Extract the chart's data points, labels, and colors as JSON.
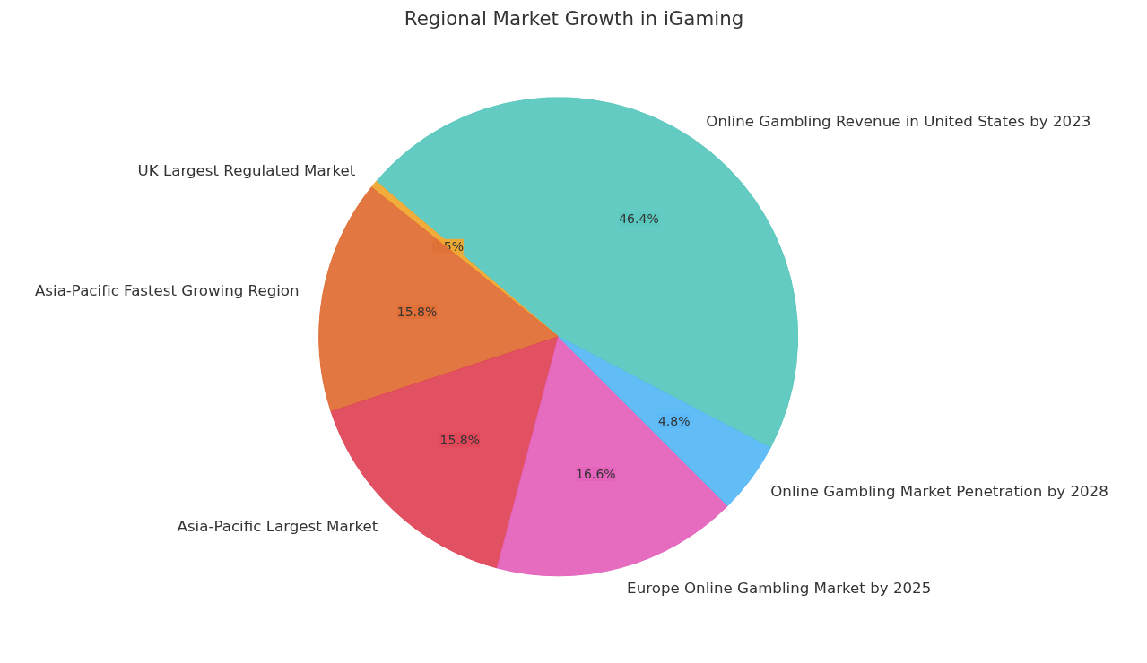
{
  "chart_data": {
    "type": "pie",
    "title": "Regional Market Growth in iGaming",
    "categories": [
      "Online Gambling Revenue in United States by 2023",
      "UK Largest Regulated Market",
      "Asia-Pacific Fastest Growing Region",
      "Asia-Pacific Largest Market",
      "Europe Online Gambling Market by 2025",
      "Online Gambling Market Penetration by 2028"
    ],
    "values": [
      46.4,
      0.5,
      15.8,
      15.8,
      16.6,
      4.8
    ],
    "colors": [
      "#5bc8bf",
      "#f0a830",
      "#e07038",
      "#e0485a",
      "#e464bc",
      "#5ab8f5"
    ],
    "value_labels": [
      "46.4%",
      "0.5%",
      "15.8%",
      "15.8%",
      "16.6%",
      "4.8%"
    ]
  }
}
